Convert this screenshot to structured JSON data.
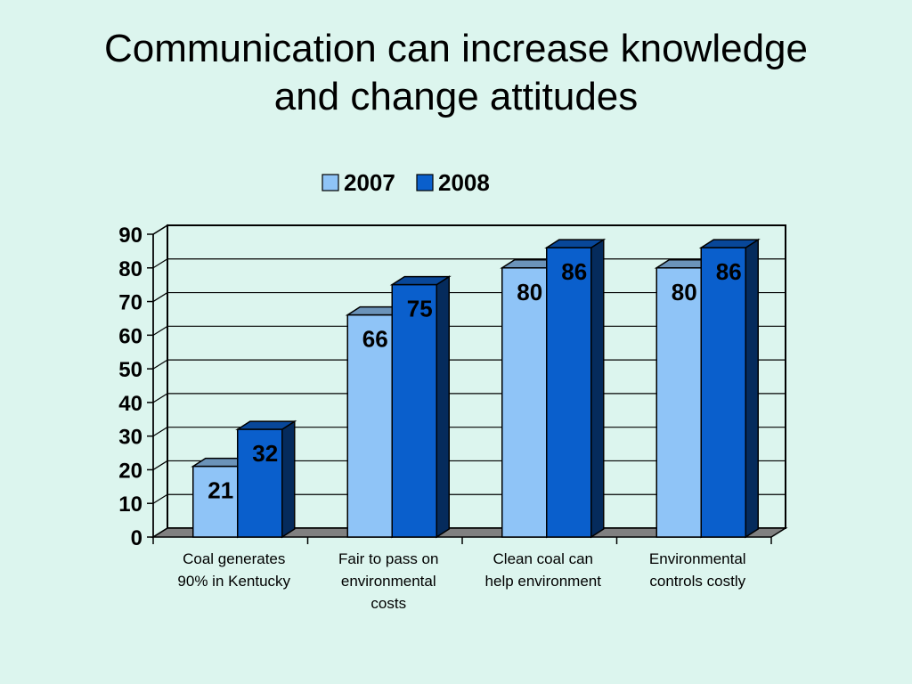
{
  "slide": {
    "title_line1": "Communication can increase knowledge",
    "title_line2": "and change attitudes"
  },
  "chart_data": {
    "type": "bar",
    "style": "3d-clustered-column",
    "categories": [
      [
        "Coal generates",
        "90% in Kentucky"
      ],
      [
        "Fair to pass on",
        "environmental",
        "costs"
      ],
      [
        "Clean coal can",
        "help environment"
      ],
      [
        "Environmental",
        "controls costly"
      ]
    ],
    "series": [
      {
        "name": "2007",
        "values": [
          21,
          66,
          80,
          80
        ],
        "color": "#8fc4f7"
      },
      {
        "name": "2008",
        "values": [
          32,
          75,
          86,
          86
        ],
        "color": "#0a5fcc"
      }
    ],
    "ylim": [
      0,
      90
    ],
    "yticks": [
      0,
      10,
      20,
      30,
      40,
      50,
      60,
      70,
      80,
      90
    ],
    "grid": true,
    "legend": "top-center",
    "xlabel": "",
    "ylabel": ""
  }
}
